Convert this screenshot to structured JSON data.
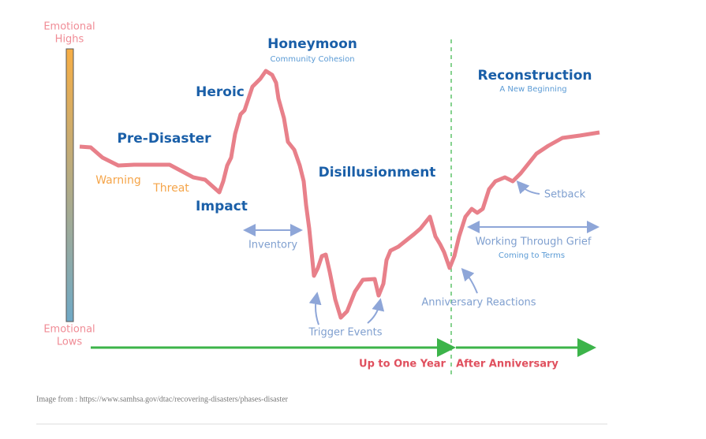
{
  "axis": {
    "high": [
      "Emotional",
      "Highs"
    ],
    "low": [
      "Emotional",
      "Lows"
    ]
  },
  "phases": [
    {
      "label": "Pre-Disaster"
    },
    {
      "label": "Heroic"
    },
    {
      "label": "Honeymoon",
      "sub": "Community Cohesion"
    },
    {
      "label": "Impact"
    },
    {
      "label": "Disillusionment"
    },
    {
      "label": "Reconstruction",
      "sub": "A New Beginning"
    }
  ],
  "warnings": [
    "Warning",
    "Threat"
  ],
  "annotations": {
    "inventory": "Inventory",
    "trigger": "Trigger Events",
    "anniversary": "Anniversary Reactions",
    "setback": "Setback",
    "grief": "Working Through Grief",
    "terms": "Coming to Terms"
  },
  "timeline": [
    "Up to One Year",
    "After Anniversary"
  ],
  "caption": "Image from : https://www.samhsa.gov/dtac/recovering-disasters/phases-disaster"
}
